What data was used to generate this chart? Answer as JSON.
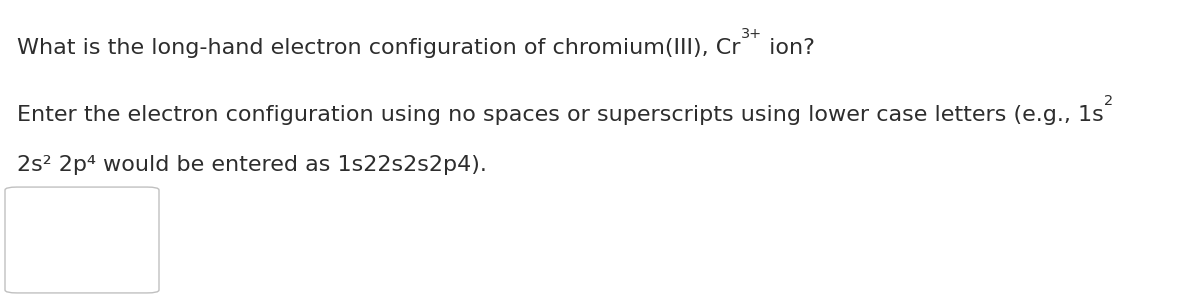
{
  "bg_color": "#ffffff",
  "line1_part1": "What is the long-hand electron configuration of chromium(III), Cr",
  "line1_super": "3+",
  "line1_part2": " ion?",
  "line2_part1": "Enter the electron configuration using no spaces or superscripts using lower case letters (e.g., 1s",
  "line2_super": "2",
  "line3": "2s² 2p⁴ would be entered as 1s22s2s2p4).",
  "font_size": 16,
  "font_color": "#2d2d2d",
  "font_family": "DejaVu Sans",
  "box_edge_color": "#c0c0c0",
  "box_face_color": "#ffffff"
}
